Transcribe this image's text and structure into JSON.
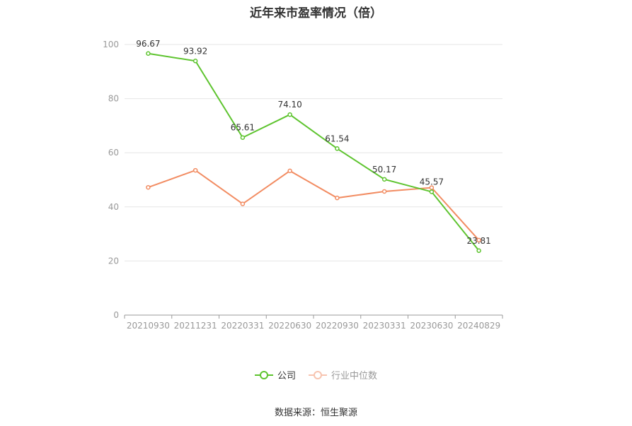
{
  "title": "近年来市盈率情况（倍）",
  "source": "数据来源：恒生聚源",
  "colors": {
    "company": "#5ec42f",
    "industry": "#f28c62",
    "grid": "#e6e6e6",
    "axis": "#999999",
    "text": "#999999"
  },
  "chart_data": {
    "type": "line",
    "title": "近年来市盈率情况（倍）",
    "categories": [
      "20210930",
      "20211231",
      "20220331",
      "20220630",
      "20220930",
      "20230331",
      "20230630",
      "20240829"
    ],
    "ylim": [
      0,
      100
    ],
    "yticks": [
      0,
      20,
      40,
      60,
      80,
      100
    ],
    "grid": true,
    "legend_position": "bottom-center",
    "series": [
      {
        "name": "公司",
        "values": [
          96.67,
          93.92,
          65.61,
          74.1,
          61.54,
          50.17,
          45.57,
          23.81
        ],
        "labels": [
          "96.67",
          "93.92",
          "65.61",
          "74.10",
          "61.54",
          "50.17",
          "45.57",
          "23.81"
        ]
      },
      {
        "name": "行业中位数",
        "values": [
          47.2,
          53.5,
          41.1,
          53.3,
          43.3,
          45.7,
          47.1,
          27.7
        ]
      }
    ]
  }
}
